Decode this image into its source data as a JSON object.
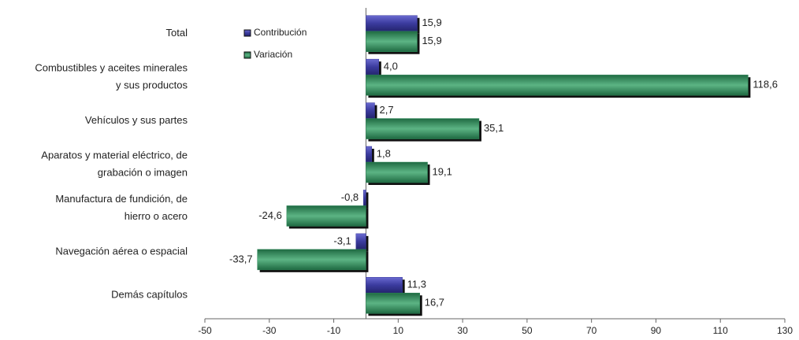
{
  "chart_data": {
    "type": "hbar",
    "categories": [
      [
        "Total"
      ],
      [
        "Combustibles y aceites minerales",
        "y sus productos"
      ],
      [
        "Vehículos y sus partes"
      ],
      [
        "Aparatos y material eléctrico, de",
        "grabación o imagen"
      ],
      [
        "Manufactura de fundición, de",
        "hierro o acero"
      ],
      [
        "Navegación aérea o espacial"
      ],
      [
        "Demás capítulos"
      ]
    ],
    "series": [
      {
        "name": "Contribución",
        "color": "#3b3b9e",
        "values": [
          15.9,
          4.0,
          2.7,
          1.8,
          -0.8,
          -3.1,
          11.3
        ],
        "value_labels": [
          "15,9",
          "4,0",
          "2,7",
          "1,8",
          "-0,8",
          "-3,1",
          "11,3"
        ]
      },
      {
        "name": "Variación",
        "color": "#2f8a5a",
        "values": [
          15.9,
          118.6,
          35.1,
          19.1,
          -24.6,
          -33.7,
          16.7
        ],
        "value_labels": [
          "15,9",
          "118,6",
          "35,1",
          "19,1",
          "-24,6",
          "-33,7",
          "16,7"
        ]
      }
    ],
    "xlim": [
      -50,
      130
    ],
    "xticks": [
      -50,
      -30,
      -10,
      10,
      30,
      50,
      70,
      90,
      110,
      130
    ]
  }
}
